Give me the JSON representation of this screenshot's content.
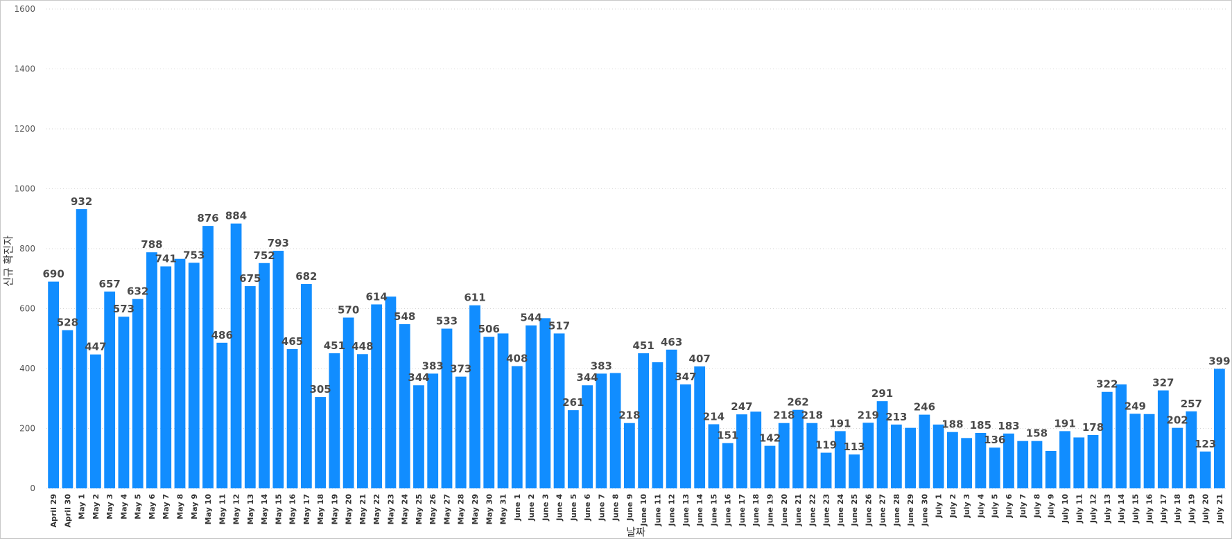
{
  "chart_data": {
    "type": "bar",
    "title": "",
    "xlabel": "날짜",
    "ylabel": "신규 확진자",
    "ylim": [
      0,
      1600
    ],
    "yticks": [
      0,
      200,
      400,
      600,
      800,
      1000,
      1200,
      1400,
      1600
    ],
    "grid": true,
    "bar_color": "#118dff",
    "label_color": "#4a4a4a",
    "categories": [
      "April 29",
      "April 30",
      "May 1",
      "May 2",
      "May 3",
      "May 4",
      "May 5",
      "May 6",
      "May 7",
      "May 8",
      "May 9",
      "May 10",
      "May 11",
      "May 12",
      "May 13",
      "May 14",
      "May 15",
      "May 16",
      "May 17",
      "May 18",
      "May 19",
      "May 20",
      "May 21",
      "May 22",
      "May 23",
      "May 24",
      "May 25",
      "May 26",
      "May 27",
      "May 28",
      "May 29",
      "May 30",
      "May 31",
      "June 1",
      "June 2",
      "June 3",
      "June 4",
      "June 5",
      "June 6",
      "June 7",
      "June 8",
      "June 9",
      "June 10",
      "June 11",
      "June 12",
      "June 13",
      "June 14",
      "June 15",
      "June 16",
      "June 17",
      "June 18",
      "June 19",
      "June 20",
      "June 21",
      "June 22",
      "June 23",
      "June 24",
      "June 25",
      "June 26",
      "June 27",
      "June 28",
      "June 29",
      "June 30",
      "July 1",
      "July 2",
      "July 3",
      "July 4",
      "July 5",
      "July 6",
      "July 7",
      "July 8",
      "July 9",
      "July 10",
      "July 11",
      "July 12",
      "July 13",
      "July 14",
      "July 15",
      "July 16",
      "July 17",
      "July 18",
      "July 19",
      "July 20",
      "July 21"
    ],
    "values": [
      690,
      528,
      932,
      447,
      657,
      573,
      632,
      788,
      741,
      766,
      753,
      876,
      486,
      884,
      675,
      752,
      793,
      465,
      682,
      305,
      451,
      570,
      448,
      614,
      640,
      548,
      344,
      383,
      533,
      373,
      611,
      506,
      517,
      408,
      544,
      568,
      517,
      261,
      344,
      383,
      385,
      218,
      451,
      421,
      463,
      347,
      407,
      214,
      151,
      247,
      256,
      142,
      218,
      262,
      218,
      119,
      191,
      113,
      219,
      291,
      213,
      202,
      246,
      213,
      188,
      168,
      185,
      136,
      183,
      158,
      158,
      125,
      191,
      170,
      178,
      322,
      347,
      249,
      248,
      327,
      202,
      257,
      123,
      399
    ],
    "labeled": [
      true,
      true,
      true,
      true,
      true,
      true,
      true,
      true,
      true,
      false,
      true,
      true,
      true,
      true,
      true,
      true,
      true,
      true,
      true,
      true,
      true,
      true,
      true,
      true,
      false,
      true,
      true,
      true,
      true,
      true,
      true,
      true,
      false,
      true,
      true,
      false,
      true,
      true,
      true,
      true,
      false,
      true,
      true,
      false,
      true,
      true,
      true,
      true,
      true,
      true,
      false,
      true,
      true,
      true,
      true,
      true,
      true,
      true,
      true,
      true,
      true,
      false,
      true,
      false,
      true,
      false,
      true,
      true,
      true,
      false,
      true,
      false,
      true,
      false,
      true,
      true,
      false,
      true,
      false,
      true,
      true,
      true,
      true,
      true
    ]
  }
}
